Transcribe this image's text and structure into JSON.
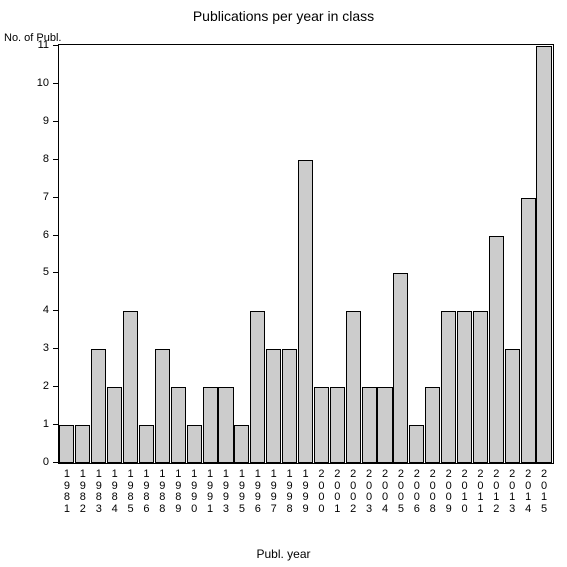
{
  "chart": {
    "type": "bar",
    "title": "Publications per year in class",
    "title_fontsize": 14,
    "y_axis_title": "No. of Publ.",
    "x_axis_title": "Publ. year",
    "label_fontsize": 11,
    "background_color": "#ffffff",
    "bar_fill_color": "#cccccc",
    "bar_border_color": "#000000",
    "axis_color": "#000000",
    "text_color": "#000000",
    "ylim": [
      0,
      11
    ],
    "ytick_step": 1,
    "bar_width_ratio": 0.95,
    "categories": [
      "1981",
      "1982",
      "1983",
      "1984",
      "1985",
      "1986",
      "1988",
      "1989",
      "1990",
      "1991",
      "1993",
      "1995",
      "1996",
      "1997",
      "1998",
      "1999",
      "2000",
      "2001",
      "2002",
      "2003",
      "2004",
      "2005",
      "2006",
      "2008",
      "2009",
      "2010",
      "2011",
      "2012",
      "2013",
      "2014",
      "2015"
    ],
    "values": [
      1,
      1,
      3,
      2,
      4,
      1,
      3,
      2,
      1,
      2,
      2,
      1,
      4,
      3,
      3,
      8,
      2,
      2,
      4,
      2,
      2,
      5,
      1,
      2,
      4,
      4,
      4,
      6,
      3,
      7,
      11
    ]
  }
}
